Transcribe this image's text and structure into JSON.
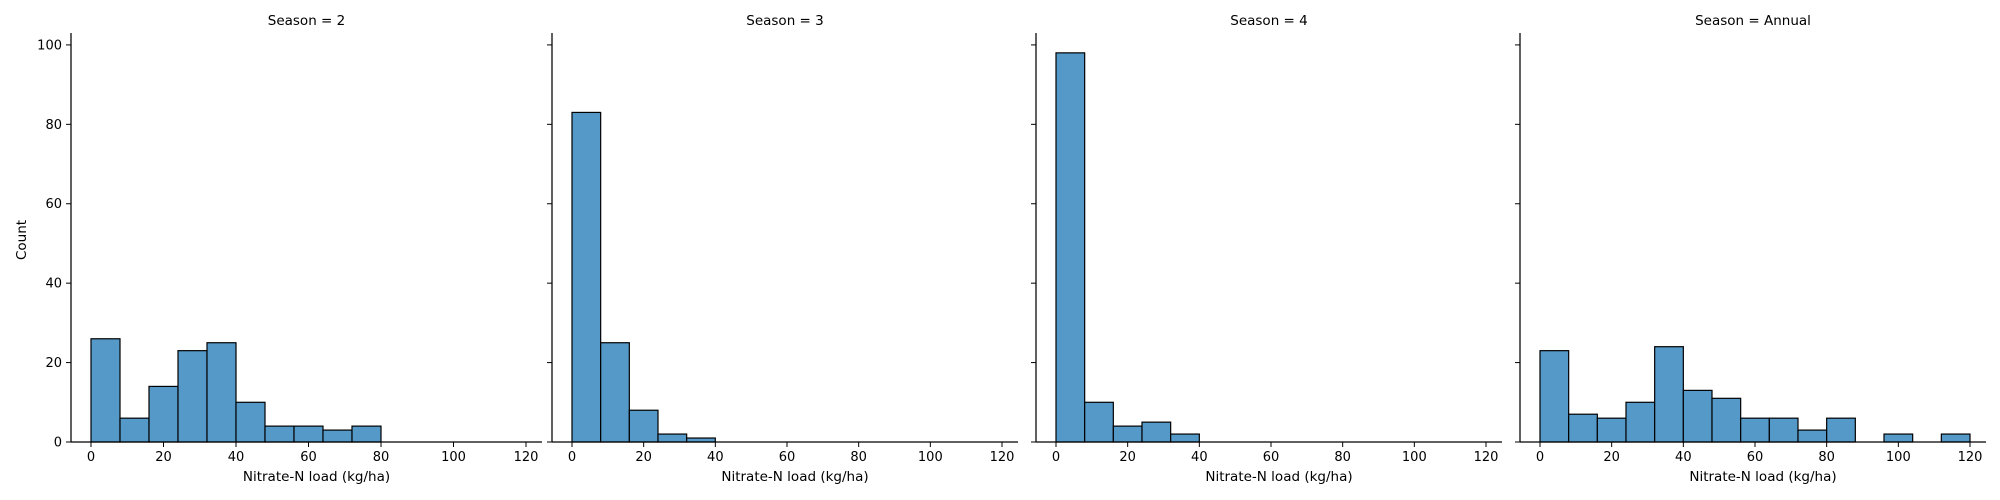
{
  "colors": {
    "bar_fill": "#5599c8",
    "bar_edge": "#000000",
    "axis": "#000000",
    "background": "#ffffff"
  },
  "ylabel": "Count",
  "chart_data": [
    {
      "type": "bar",
      "title": "Season = 2",
      "xlabel": "Nitrate-N load (kg/ha)",
      "ylabel": "Count",
      "xlim": [
        -5,
        125
      ],
      "ylim": [
        0,
        103
      ],
      "x_ticks": [
        0,
        20,
        40,
        60,
        80,
        100,
        120
      ],
      "y_ticks": [
        0,
        20,
        40,
        60,
        80,
        100
      ],
      "bins": [
        {
          "start": 0,
          "end": 8,
          "count": 26
        },
        {
          "start": 8,
          "end": 16,
          "count": 6
        },
        {
          "start": 16,
          "end": 24,
          "count": 14
        },
        {
          "start": 24,
          "end": 32,
          "count": 23
        },
        {
          "start": 32,
          "end": 40,
          "count": 25
        },
        {
          "start": 40,
          "end": 48,
          "count": 10
        },
        {
          "start": 48,
          "end": 56,
          "count": 4
        },
        {
          "start": 56,
          "end": 64,
          "count": 4
        },
        {
          "start": 64,
          "end": 72,
          "count": 3
        },
        {
          "start": 72,
          "end": 80,
          "count": 4
        }
      ]
    },
    {
      "type": "bar",
      "title": "Season = 3",
      "xlabel": "Nitrate-N load (kg/ha)",
      "ylabel": "",
      "xlim": [
        -5,
        125
      ],
      "ylim": [
        0,
        103
      ],
      "x_ticks": [
        0,
        20,
        40,
        60,
        80,
        100,
        120
      ],
      "y_ticks": [
        0,
        20,
        40,
        60,
        80,
        100
      ],
      "bins": [
        {
          "start": 0,
          "end": 8,
          "count": 83
        },
        {
          "start": 8,
          "end": 16,
          "count": 25
        },
        {
          "start": 16,
          "end": 24,
          "count": 8
        },
        {
          "start": 24,
          "end": 32,
          "count": 2
        },
        {
          "start": 32,
          "end": 40,
          "count": 1
        }
      ]
    },
    {
      "type": "bar",
      "title": "Season = 4",
      "xlabel": "Nitrate-N load (kg/ha)",
      "ylabel": "",
      "xlim": [
        -5,
        125
      ],
      "ylim": [
        0,
        103
      ],
      "x_ticks": [
        0,
        20,
        40,
        60,
        80,
        100,
        120
      ],
      "y_ticks": [
        0,
        20,
        40,
        60,
        80,
        100
      ],
      "bins": [
        {
          "start": 0,
          "end": 8,
          "count": 98
        },
        {
          "start": 8,
          "end": 16,
          "count": 10
        },
        {
          "start": 16,
          "end": 24,
          "count": 4
        },
        {
          "start": 24,
          "end": 32,
          "count": 5
        },
        {
          "start": 32,
          "end": 40,
          "count": 2
        }
      ]
    },
    {
      "type": "bar",
      "title": "Season = Annual",
      "xlabel": "Nitrate-N load (kg/ha)",
      "ylabel": "",
      "xlim": [
        -5,
        125
      ],
      "ylim": [
        0,
        103
      ],
      "x_ticks": [
        0,
        20,
        40,
        60,
        80,
        100,
        120
      ],
      "y_ticks": [
        0,
        20,
        40,
        60,
        80,
        100
      ],
      "bins": [
        {
          "start": 0,
          "end": 8,
          "count": 23
        },
        {
          "start": 8,
          "end": 16,
          "count": 7
        },
        {
          "start": 16,
          "end": 24,
          "count": 6
        },
        {
          "start": 24,
          "end": 32,
          "count": 10
        },
        {
          "start": 32,
          "end": 40,
          "count": 24
        },
        {
          "start": 40,
          "end": 48,
          "count": 13
        },
        {
          "start": 48,
          "end": 56,
          "count": 11
        },
        {
          "start": 56,
          "end": 64,
          "count": 6
        },
        {
          "start": 64,
          "end": 72,
          "count": 6
        },
        {
          "start": 72,
          "end": 80,
          "count": 3
        },
        {
          "start": 80,
          "end": 88,
          "count": 6
        },
        {
          "start": 88,
          "end": 96,
          "count": 0
        },
        {
          "start": 96,
          "end": 104,
          "count": 2
        },
        {
          "start": 104,
          "end": 112,
          "count": 0
        },
        {
          "start": 112,
          "end": 120,
          "count": 2
        }
      ]
    }
  ]
}
